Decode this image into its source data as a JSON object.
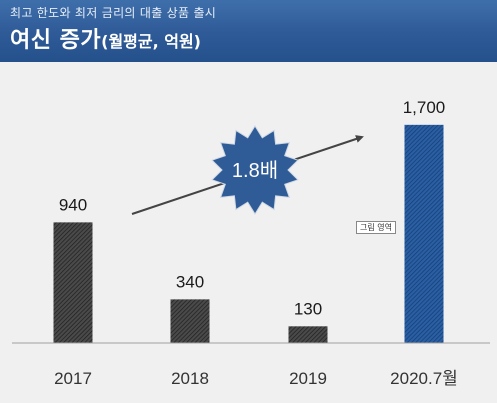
{
  "header": {
    "subtitle": "최고 한도와 최저 금리의 대출 상품 출시",
    "title": "여신 증가",
    "title_unit": "(월평균, 억원)"
  },
  "badge": {
    "text": "1.8배",
    "color": "#2f5c96"
  },
  "tooltip": {
    "text": "그림 영역"
  },
  "colors": {
    "bar_dark": "#3e3e3e",
    "bar_highlight": "#1f4f8f",
    "axis": "#a0a0a0"
  },
  "chart_data": {
    "type": "bar",
    "title": "여신 증가",
    "ylabel": "",
    "xlabel": "",
    "ylim": [
      0,
      1800
    ],
    "categories": [
      "2017",
      "2018",
      "2019",
      "2020.7월"
    ],
    "values": [
      940,
      340,
      130,
      1700
    ],
    "value_labels": [
      "940",
      "340",
      "130",
      "1,700"
    ],
    "highlight_index": 3,
    "grid": false,
    "legend": "none"
  }
}
